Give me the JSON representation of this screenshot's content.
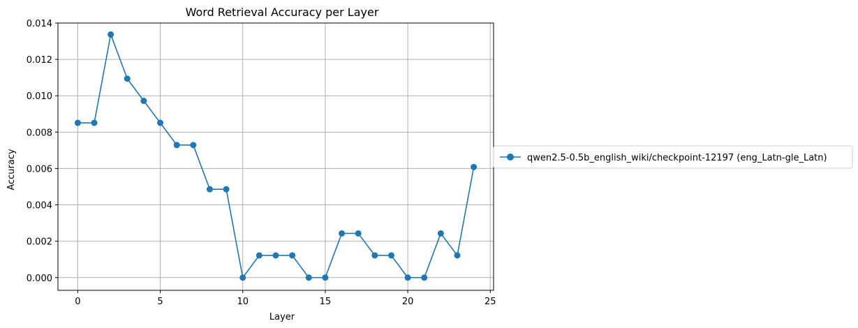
{
  "chart_data": {
    "type": "line",
    "title": "Word Retrieval Accuracy per Layer",
    "xlabel": "Layer",
    "ylabel": "Accuracy",
    "xlim": [
      -1.2,
      25.2
    ],
    "ylim": [
      -0.0007,
      0.014
    ],
    "xticks": [
      0,
      5,
      10,
      15,
      20,
      25
    ],
    "xtick_labels": [
      "0",
      "5",
      "10",
      "15",
      "20",
      "25"
    ],
    "yticks": [
      0.0,
      0.002,
      0.004,
      0.006,
      0.008,
      0.01,
      0.012,
      0.014
    ],
    "ytick_labels": [
      "0.000",
      "0.002",
      "0.004",
      "0.006",
      "0.008",
      "0.010",
      "0.012",
      "0.014"
    ],
    "grid": true,
    "legend_position": "center-left outside plot, right side",
    "series": [
      {
        "name": "qwen2.5-0.5b_english_wiki/checkpoint-12197 (eng_Latn-gle_Latn)",
        "color": "#1f77b4",
        "marker": "circle",
        "x": [
          0,
          1,
          2,
          3,
          4,
          5,
          6,
          7,
          8,
          9,
          10,
          11,
          12,
          13,
          14,
          15,
          16,
          17,
          18,
          19,
          20,
          21,
          22,
          23,
          24
        ],
        "y": [
          0.00851,
          0.00851,
          0.01337,
          0.01094,
          0.00972,
          0.00851,
          0.00729,
          0.00729,
          0.00486,
          0.00486,
          0.0,
          0.00122,
          0.00122,
          0.00122,
          0.0,
          0.0,
          0.00243,
          0.00243,
          0.00122,
          0.00122,
          0.0,
          0.0,
          0.00243,
          0.00122,
          0.00608
        ]
      }
    ]
  }
}
